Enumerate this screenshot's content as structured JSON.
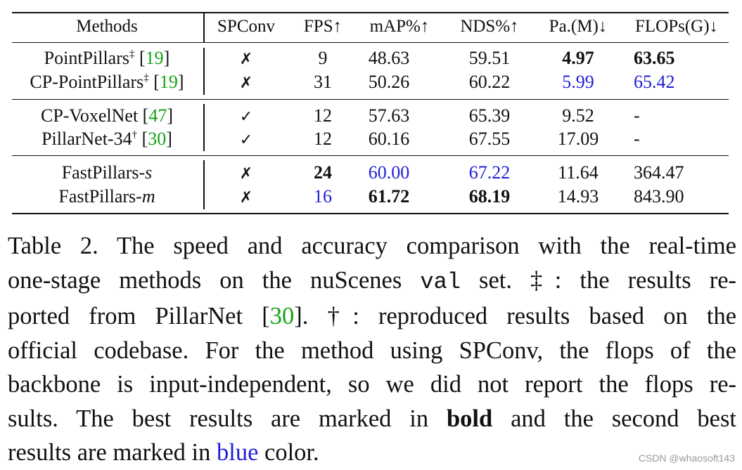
{
  "table": {
    "headers": [
      "Methods",
      "SPConv",
      "FPS↑",
      "mAP%↑",
      "NDS%↑",
      "Pa.(M)↓",
      "FLOPs(G)↓"
    ],
    "rows": [
      {
        "method": "PointPillars",
        "sup": "‡",
        "ref": "19",
        "spconv": "✗",
        "fps": "9",
        "map": "48.63",
        "nds": "59.51",
        "pa": "4.97",
        "flops": "63.65"
      },
      {
        "method": "CP-PointPillars",
        "sup": "‡",
        "ref": "19",
        "spconv": "✗",
        "fps": "31",
        "map": "50.26",
        "nds": "60.22",
        "pa": "5.99",
        "flops": "65.42"
      },
      {
        "method": "CP-VoxelNet",
        "sup": "",
        "ref": "47",
        "spconv": "✓",
        "fps": "12",
        "map": "57.63",
        "nds": "65.39",
        "pa": "9.52",
        "flops": "-"
      },
      {
        "method": "PillarNet-34",
        "sup": "†",
        "ref": "30",
        "spconv": "✓",
        "fps": "12",
        "map": "60.16",
        "nds": "67.55",
        "pa": "17.09",
        "flops": "-"
      },
      {
        "method": "FastPillars-",
        "suffix": "s",
        "spconv": "✗",
        "fps": "24",
        "map": "60.00",
        "nds": "67.22",
        "pa": "11.64",
        "flops": "364.47"
      },
      {
        "method": "FastPillars-",
        "suffix": "m",
        "spconv": "✗",
        "fps": "16",
        "map": "61.72",
        "nds": "68.19",
        "pa": "14.93",
        "flops": "843.90"
      }
    ]
  },
  "caption": {
    "l1": "Table 2.  The speed and accuracy comparison with the real-time",
    "l2a": "one-stage methods on the nuScenes ",
    "l2_mono": "val",
    "l2b": " set.  ‡: the results re-",
    "l3a": "ported from PillarNet [",
    "l3_ref": "30",
    "l3b": "].  †: reproduced results based on the",
    "l4": "official codebase. For the method using SPConv, the flops of the",
    "l5": "backbone is input-independent, so we did not report the flops re-",
    "l6a": "sults.  The best results are marked in ",
    "l6_bold": "bold",
    "l6b": " and the second best",
    "l7a": "results are marked in ",
    "l7_blue": "blue",
    "l7b": " color."
  },
  "watermark": "CSDN @whaosoft143",
  "colors": {
    "best_second": "#1f1fd6",
    "citation": "#14a314"
  }
}
